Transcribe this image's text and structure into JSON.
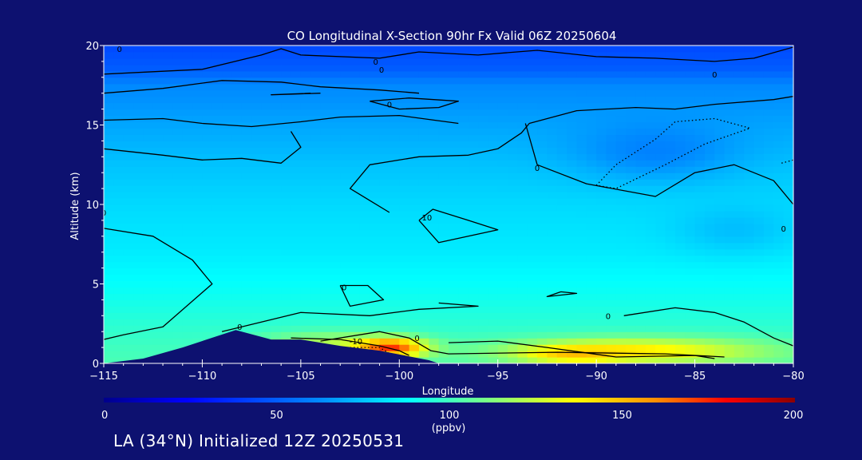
{
  "chart_data": {
    "type": "heatmap",
    "title": "CO Longitudinal X-Section 90hr  Fx Valid 06Z 20250604",
    "xlabel": "Longitude",
    "ylabel": "Altitude (km)",
    "xlim": [
      -115,
      -80
    ],
    "ylim": [
      0,
      20
    ],
    "x_ticks": [
      -115,
      -110,
      -105,
      -100,
      -95,
      -90,
      -85,
      -80
    ],
    "x_tick_labels": [
      "−115",
      "−110",
      "−105",
      "−100",
      "−95",
      "−90",
      "−85",
      "−80"
    ],
    "y_ticks": [
      0,
      5,
      10,
      15,
      20
    ],
    "y_tick_labels": [
      "0",
      "5",
      "10",
      "15",
      "20"
    ],
    "grid": false,
    "colorbar": {
      "min": 0,
      "max": 200,
      "ticks": [
        0,
        50,
        100,
        150,
        200
      ],
      "tick_labels": [
        "0",
        "50",
        "100",
        "150",
        "200"
      ],
      "unit": "(ppbv)"
    },
    "layers": [
      {
        "altitude": 20,
        "value": 44
      },
      {
        "altitude": 18.5,
        "value": 50
      },
      {
        "altitude": 17.5,
        "value": 62
      },
      {
        "altitude": 16,
        "value": 66
      },
      {
        "altitude": 14.5,
        "value": 70
      },
      {
        "altitude": 12.5,
        "value": 75
      },
      {
        "altitude": 10,
        "value": 80
      },
      {
        "altitude": 7,
        "value": 84
      },
      {
        "altitude": 4.5,
        "value": 90
      },
      {
        "altitude": 2.5,
        "value": 96
      },
      {
        "altitude": 1,
        "value": 100
      },
      {
        "altitude": 0,
        "value": 102
      }
    ],
    "plumes": [
      {
        "lon": -103.5,
        "alt": 1.3,
        "value": 120,
        "lon_halfwidth": 3.5,
        "alt_halfwidth": 0.7
      },
      {
        "lon": -100.5,
        "alt": 1.0,
        "value": 175,
        "lon_halfwidth": 1.8,
        "alt_halfwidth": 0.6
      },
      {
        "lon": -88,
        "alt": 0.8,
        "value": 140,
        "lon_halfwidth": 6.5,
        "alt_halfwidth": 0.8
      },
      {
        "lon": -91,
        "alt": 0.6,
        "value": 150,
        "lon_halfwidth": 2.5,
        "alt_halfwidth": 0.5
      },
      {
        "lon": -87,
        "alt": 13.5,
        "value": 60,
        "lon_halfwidth": 4.0,
        "alt_halfwidth": 1.8
      },
      {
        "lon": -83,
        "alt": 8.5,
        "value": 74,
        "lon_halfwidth": 3.0,
        "alt_halfwidth": 1.5
      }
    ],
    "terrain": [
      {
        "lon": -115,
        "alt": 0.0
      },
      {
        "lon": -113,
        "alt": 0.3
      },
      {
        "lon": -111,
        "alt": 1.0
      },
      {
        "lon": -108.3,
        "alt": 2.1
      },
      {
        "lon": -106.5,
        "alt": 1.5
      },
      {
        "lon": -105,
        "alt": 1.5
      },
      {
        "lon": -103,
        "alt": 1.1
      },
      {
        "lon": -101,
        "alt": 0.8
      },
      {
        "lon": -98.5,
        "alt": 0.2
      },
      {
        "lon": -98,
        "alt": 0.0
      },
      {
        "lon": -80,
        "alt": 0.0
      }
    ],
    "contours": [
      {
        "level": 0,
        "style": "solid",
        "points": [
          [
            -115,
            18.2
          ],
          [
            -110,
            18.5
          ],
          [
            -107,
            19.4
          ],
          [
            -106,
            19.8
          ],
          [
            -105,
            19.4
          ],
          [
            -101,
            19.2
          ],
          [
            -99,
            19.6
          ],
          [
            -96,
            19.4
          ],
          [
            -93,
            19.7
          ],
          [
            -90,
            19.3
          ],
          [
            -87,
            19.2
          ],
          [
            -84,
            19.0
          ],
          [
            -82,
            19.2
          ],
          [
            -80,
            19.9
          ]
        ]
      },
      {
        "level": 0,
        "style": "solid",
        "points": [
          [
            -115,
            17.0
          ],
          [
            -112,
            17.3
          ],
          [
            -109,
            17.8
          ],
          [
            -106,
            17.7
          ],
          [
            -104,
            17.4
          ],
          [
            -101,
            17.2
          ],
          [
            -99,
            17.0
          ]
        ]
      },
      {
        "level": 0,
        "style": "solid",
        "points": [
          [
            -104,
            17.0
          ],
          [
            -106.5,
            16.9
          ],
          [
            -104.5,
            17.0
          ]
        ]
      },
      {
        "level": 10,
        "style": "solid",
        "points": [
          [
            -115,
            15.3
          ],
          [
            -112,
            15.4
          ],
          [
            -110,
            15.1
          ],
          [
            -107.5,
            14.9
          ],
          [
            -105,
            15.2
          ],
          [
            -103,
            15.5
          ],
          [
            -100,
            15.6
          ],
          [
            -97,
            15.1
          ]
        ]
      },
      {
        "level": 10,
        "style": "solid",
        "points": [
          [
            -115,
            13.5
          ],
          [
            -112,
            13.1
          ],
          [
            -110,
            12.8
          ],
          [
            -108,
            12.9
          ],
          [
            -106,
            12.6
          ],
          [
            -105,
            13.6
          ],
          [
            -105.5,
            14.6
          ]
        ]
      },
      {
        "level": 0,
        "style": "solid",
        "points": [
          [
            -101.5,
            16.5
          ],
          [
            -99.5,
            16.7
          ],
          [
            -97,
            16.5
          ],
          [
            -98,
            16.1
          ],
          [
            -100,
            16.0
          ],
          [
            -101.5,
            16.5
          ]
        ]
      },
      {
        "level": 10,
        "style": "solid",
        "points": [
          [
            -100.5,
            9.5
          ],
          [
            -102.5,
            11.0
          ],
          [
            -101.5,
            12.5
          ],
          [
            -99,
            13.0
          ],
          [
            -96.5,
            13.1
          ],
          [
            -95,
            13.5
          ],
          [
            -93.8,
            14.5
          ],
          [
            -93.4,
            15.1
          ],
          [
            -91,
            15.9
          ],
          [
            -88,
            16.1
          ],
          [
            -86,
            16.0
          ],
          [
            -84,
            16.3
          ],
          [
            -81,
            16.6
          ],
          [
            -80,
            16.8
          ]
        ]
      },
      {
        "level": 10,
        "style": "solid",
        "points": [
          [
            -99.0,
            9.0
          ],
          [
            -98.3,
            9.7
          ],
          [
            -96.5,
            9.0
          ],
          [
            -95,
            8.4
          ],
          [
            -98,
            7.6
          ],
          [
            -99.0,
            9.0
          ]
        ]
      },
      {
        "level": 10,
        "style": "solid",
        "points": [
          [
            -93.6,
            15.1
          ],
          [
            -93,
            12.5
          ],
          [
            -90.5,
            11.3
          ],
          [
            -87,
            10.5
          ],
          [
            -85,
            12.0
          ],
          [
            -83,
            12.5
          ],
          [
            -81,
            11.5
          ],
          [
            -80,
            10.0
          ]
        ]
      },
      {
        "level": 0,
        "style": "solid",
        "points": [
          [
            -115,
            8.5
          ],
          [
            -112.5,
            8.0
          ],
          [
            -110.5,
            6.5
          ],
          [
            -109.5,
            5.0
          ],
          [
            -112,
            2.3
          ],
          [
            -114,
            1.8
          ],
          [
            -115,
            1.5
          ]
        ]
      },
      {
        "level": 0,
        "style": "solid",
        "points": [
          [
            -109,
            2.0
          ],
          [
            -105,
            3.2
          ],
          [
            -101.5,
            3.0
          ],
          [
            -99.0,
            3.4
          ],
          [
            -96,
            3.6
          ],
          [
            -98,
            3.8
          ]
        ]
      },
      {
        "level": 0,
        "style": "solid",
        "points": [
          [
            -104,
            1.4
          ],
          [
            -101,
            2.0
          ],
          [
            -99.5,
            1.6
          ],
          [
            -98.4,
            0.8
          ],
          [
            -97.5,
            0.6
          ],
          [
            -92,
            0.7
          ],
          [
            -86.5,
            0.6
          ],
          [
            -83.5,
            0.4
          ]
        ]
      },
      {
        "level": 0,
        "style": "solid",
        "points": [
          [
            -103,
            4.9
          ],
          [
            -101.6,
            4.9
          ],
          [
            -100.8,
            4.0
          ],
          [
            -102.5,
            3.6
          ],
          [
            -103,
            4.9
          ]
        ]
      },
      {
        "level": 0,
        "style": "solid",
        "points": [
          [
            -91.8,
            4.5
          ],
          [
            -91.0,
            4.4
          ],
          [
            -92.5,
            4.2
          ],
          [
            -91.8,
            4.5
          ]
        ]
      },
      {
        "level": 0,
        "style": "solid",
        "points": [
          [
            -88.6,
            3.0
          ],
          [
            -86,
            3.5
          ],
          [
            -84,
            3.2
          ],
          [
            -82.5,
            2.6
          ],
          [
            -81,
            1.6
          ],
          [
            -80,
            1.1
          ]
        ]
      },
      {
        "level": 10,
        "style": "solid",
        "points": [
          [
            -105.5,
            1.6
          ],
          [
            -103,
            1.5
          ],
          [
            -101,
            1.1
          ],
          [
            -100.0,
            0.8
          ],
          [
            -99.5,
            0.5
          ]
        ]
      },
      {
        "level": 0,
        "style": "solid",
        "points": [
          [
            -97.5,
            1.3
          ],
          [
            -95,
            1.4
          ],
          [
            -92.5,
            1.0
          ],
          [
            -89,
            0.4
          ],
          [
            -85,
            0.5
          ],
          [
            -84,
            0.3
          ]
        ]
      },
      {
        "level": 20,
        "style": "dotted",
        "points": [
          [
            -90,
            11.2
          ],
          [
            -89,
            12.5
          ],
          [
            -87,
            14.1
          ],
          [
            -86,
            15.2
          ],
          [
            -84,
            15.4
          ],
          [
            -82.2,
            14.8
          ],
          [
            -84.5,
            13.8
          ],
          [
            -86.5,
            12.5
          ],
          [
            -89,
            11.0
          ],
          [
            -90,
            11.2
          ]
        ]
      },
      {
        "level": 20,
        "style": "dotted",
        "points": [
          [
            -80.6,
            12.6
          ],
          [
            -80.0,
            12.8
          ]
        ]
      },
      {
        "level": -10,
        "style": "dotted",
        "points": [
          [
            -102.5,
            1.0
          ],
          [
            -101,
            1.0
          ],
          [
            -100.2,
            0.4
          ]
        ]
      }
    ],
    "contour_labels": [
      {
        "text": "0",
        "lon": -114.2,
        "alt": 19.8
      },
      {
        "text": "0",
        "lon": -101.2,
        "alt": 19.0
      },
      {
        "text": "0",
        "lon": -100.9,
        "alt": 18.5
      },
      {
        "text": "0",
        "lon": -84.0,
        "alt": 18.2
      },
      {
        "text": "0",
        "lon": -100.5,
        "alt": 16.3
      },
      {
        "text": "0",
        "lon": -93.0,
        "alt": 12.3
      },
      {
        "text": "10",
        "lon": -98.6,
        "alt": 9.2
      },
      {
        "text": "0",
        "lon": -115,
        "alt": 9.5
      },
      {
        "text": "0",
        "lon": -80.5,
        "alt": 8.5
      },
      {
        "text": "0",
        "lon": -102.8,
        "alt": 4.8
      },
      {
        "text": "0",
        "lon": -108.1,
        "alt": 2.3
      },
      {
        "text": "0",
        "lon": -99.1,
        "alt": 1.6
      },
      {
        "text": "0",
        "lon": -89.4,
        "alt": 3.0
      },
      {
        "text": "-10",
        "lon": -102.2,
        "alt": 1.4
      }
    ]
  },
  "footer": "LA (34°N) Initialized 12Z 20250531"
}
